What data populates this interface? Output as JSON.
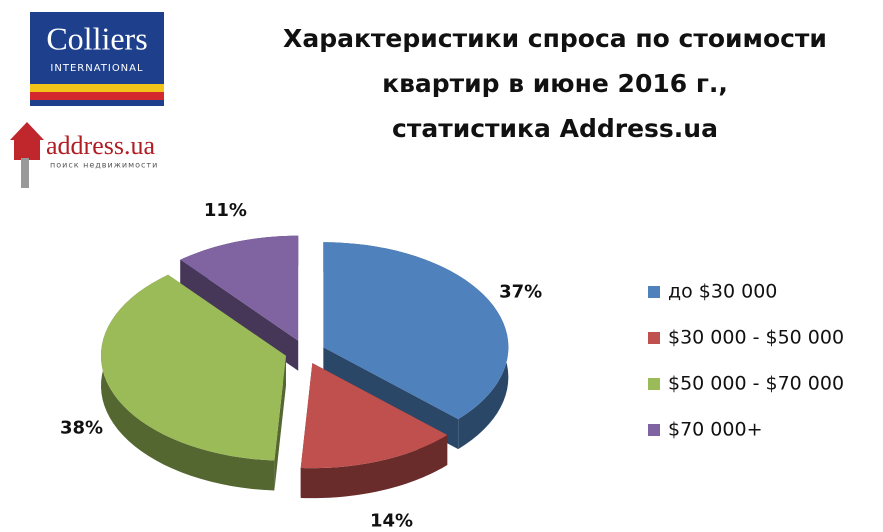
{
  "logos": {
    "colliers": "Colliers",
    "colliers_sub": "INTERNATIONAL",
    "address": "address.ua",
    "address_sub": "поиск недвижимости"
  },
  "chart_data": {
    "type": "pie",
    "title": [
      "Характеристики спроса по стоимости",
      "квартир в июне 2016 г.,",
      "статистика Address.ua"
    ],
    "categories": [
      "до $30 000",
      "$30 000 - $50 000",
      "$50 000 - $70 000",
      "$70 000+"
    ],
    "values": [
      37,
      14,
      38,
      11
    ],
    "value_labels": [
      "37%",
      "14%",
      "38%",
      "11%"
    ],
    "colors": [
      "#4f81bd",
      "#c0504d",
      "#9bbb59",
      "#8064a2"
    ],
    "legend": "right"
  }
}
